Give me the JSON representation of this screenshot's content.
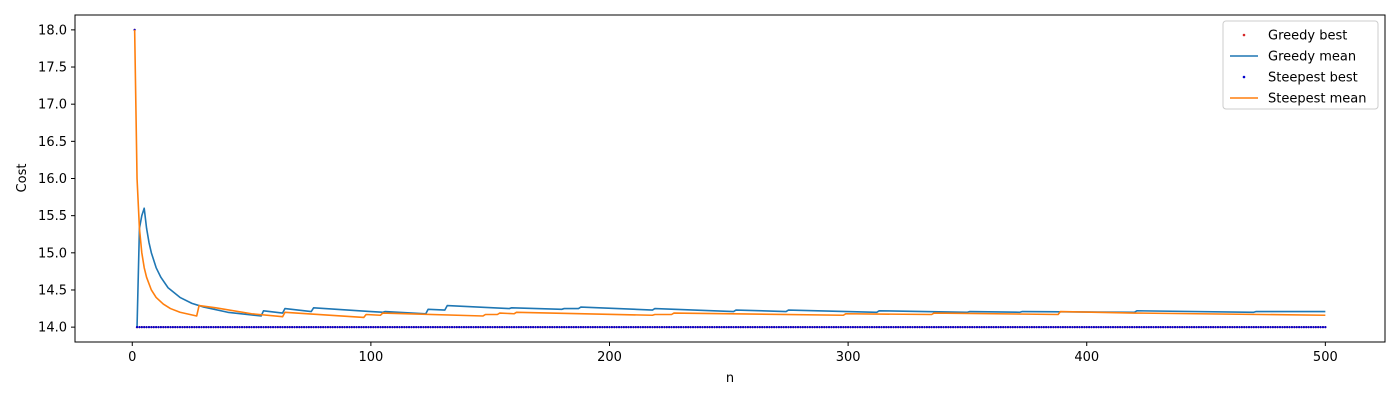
{
  "chart_data": {
    "type": "line",
    "title": "",
    "xlabel": "n",
    "ylabel": "Cost",
    "xlim": [
      -24,
      525
    ],
    "ylim": [
      13.8,
      18.2
    ],
    "xticks": [
      0,
      100,
      200,
      300,
      400,
      500
    ],
    "yticks": [
      14.0,
      14.5,
      15.0,
      15.5,
      16.0,
      16.5,
      17.0,
      17.5,
      18.0
    ],
    "grid": false,
    "legend_position": "top-right",
    "series": [
      {
        "name": "Greedy best",
        "kind": "points",
        "color": "#d62728",
        "points": [
          [
            1,
            18.0
          ],
          [
            2,
            14.0
          ]
        ],
        "constant_from": 2,
        "constant_to": 500,
        "constant_value": 14.0
      },
      {
        "name": "Greedy mean",
        "kind": "line",
        "color": "#1f77b4",
        "points": [
          [
            2,
            14.0
          ],
          [
            3,
            15.33
          ],
          [
            4,
            15.5
          ],
          [
            5,
            15.6
          ],
          [
            6,
            15.33
          ],
          [
            7,
            15.14
          ],
          [
            8,
            15.0
          ],
          [
            10,
            14.8
          ],
          [
            12,
            14.67
          ],
          [
            15,
            14.53
          ],
          [
            20,
            14.4
          ],
          [
            25,
            14.32
          ],
          [
            30,
            14.27
          ],
          [
            40,
            14.2
          ],
          [
            54,
            14.15
          ],
          [
            55,
            14.22
          ],
          [
            63,
            14.19
          ],
          [
            64,
            14.25
          ],
          [
            75,
            14.21
          ],
          [
            76,
            14.26
          ],
          [
            100,
            14.21
          ],
          [
            105,
            14.2
          ],
          [
            106,
            14.21
          ],
          [
            123,
            14.18
          ],
          [
            124,
            14.24
          ],
          [
            131,
            14.23
          ],
          [
            132,
            14.29
          ],
          [
            158,
            14.25
          ],
          [
            159,
            14.26
          ],
          [
            180,
            14.24
          ],
          [
            181,
            14.25
          ],
          [
            187,
            14.25
          ],
          [
            188,
            14.27
          ],
          [
            218,
            14.23
          ],
          [
            219,
            14.25
          ],
          [
            252,
            14.21
          ],
          [
            253,
            14.23
          ],
          [
            274,
            14.21
          ],
          [
            275,
            14.23
          ],
          [
            312,
            14.2
          ],
          [
            313,
            14.22
          ],
          [
            350,
            14.2
          ],
          [
            351,
            14.21
          ],
          [
            372,
            14.2
          ],
          [
            373,
            14.21
          ],
          [
            420,
            14.2
          ],
          [
            421,
            14.22
          ],
          [
            470,
            14.2
          ],
          [
            471,
            14.21
          ],
          [
            480,
            14.21
          ],
          [
            481,
            14.21
          ],
          [
            500,
            14.21
          ]
        ]
      },
      {
        "name": "Steepest best",
        "kind": "points",
        "color": "#0000cc",
        "points": [
          [
            1,
            18.0
          ]
        ],
        "constant_from": 2,
        "constant_to": 500,
        "constant_value": 14.0
      },
      {
        "name": "Steepest mean",
        "kind": "line",
        "color": "#ff7f0e",
        "points": [
          [
            1,
            18.0
          ],
          [
            2,
            16.0
          ],
          [
            3,
            15.33
          ],
          [
            4,
            15.0
          ],
          [
            5,
            14.8
          ],
          [
            6,
            14.67
          ],
          [
            8,
            14.5
          ],
          [
            10,
            14.4
          ],
          [
            13,
            14.31
          ],
          [
            16,
            14.25
          ],
          [
            20,
            14.2
          ],
          [
            27,
            14.15
          ],
          [
            28,
            14.29
          ],
          [
            35,
            14.26
          ],
          [
            50,
            14.18
          ],
          [
            63,
            14.14
          ],
          [
            64,
            14.2
          ],
          [
            97,
            14.13
          ],
          [
            98,
            14.17
          ],
          [
            104,
            14.16
          ],
          [
            105,
            14.19
          ],
          [
            147,
            14.15
          ],
          [
            148,
            14.17
          ],
          [
            153,
            14.17
          ],
          [
            154,
            14.19
          ],
          [
            160,
            14.18
          ],
          [
            161,
            14.2
          ],
          [
            218,
            14.16
          ],
          [
            219,
            14.17
          ],
          [
            226,
            14.17
          ],
          [
            227,
            14.19
          ],
          [
            298,
            14.16
          ],
          [
            299,
            14.18
          ],
          [
            335,
            14.17
          ],
          [
            336,
            14.19
          ],
          [
            388,
            14.17
          ],
          [
            389,
            14.21
          ],
          [
            420,
            14.19
          ],
          [
            500,
            14.16
          ]
        ]
      }
    ]
  }
}
